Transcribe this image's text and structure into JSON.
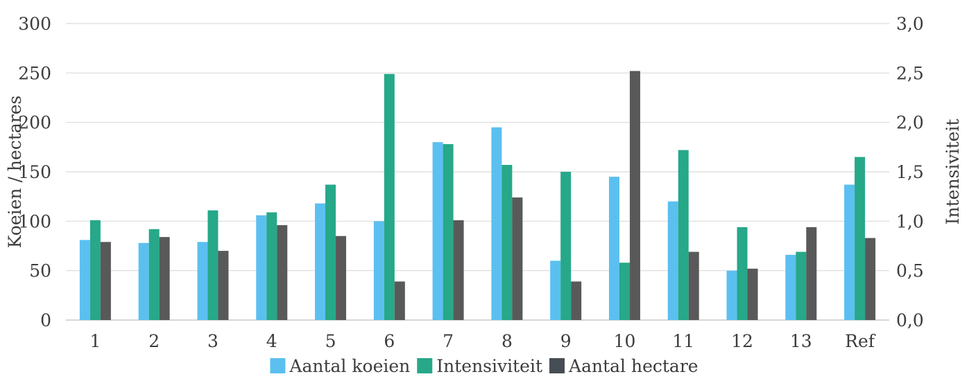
{
  "chart_data": {
    "type": "bar",
    "categories": [
      "1",
      "2",
      "3",
      "4",
      "5",
      "6",
      "7",
      "8",
      "9",
      "10",
      "11",
      "12",
      "13",
      "Ref"
    ],
    "series": [
      {
        "name": "Aantal koeien",
        "axis": "left",
        "color": "#5bc0f0",
        "values": [
          81,
          78,
          79,
          106,
          118,
          100,
          180,
          195,
          60,
          145,
          120,
          50,
          66,
          137
        ]
      },
      {
        "name": "Intensiviteit",
        "axis": "right",
        "color": "#26a889",
        "values": [
          1.01,
          0.92,
          1.11,
          1.09,
          1.37,
          2.49,
          1.78,
          1.57,
          1.5,
          0.58,
          1.72,
          0.94,
          0.69,
          1.65
        ]
      },
      {
        "name": "Aantal hectare",
        "axis": "left",
        "color": "#595959",
        "values": [
          79,
          84,
          70,
          96,
          85,
          39,
          101,
          124,
          39,
          252,
          69,
          52,
          94,
          83
        ]
      }
    ],
    "ylabel": "Koeien / hectares",
    "y2label": "Intensiviteit",
    "ylim": [
      0,
      300
    ],
    "y2lim": [
      0,
      3
    ],
    "yticks": [
      "0",
      "50",
      "100",
      "150",
      "200",
      "250",
      "300"
    ],
    "y2ticks": [
      "0,0",
      "0,5",
      "1,0",
      "1,5",
      "2,0",
      "2,5",
      "3,0"
    ],
    "grid": true,
    "legend_position": "bottom",
    "legend": [
      {
        "label": "Aantal koeien",
        "color": "#5bc0f0"
      },
      {
        "label": "Intensiviteit",
        "color": "#26a889"
      },
      {
        "label": "Aantal hectare",
        "color": "#474d55"
      }
    ]
  }
}
